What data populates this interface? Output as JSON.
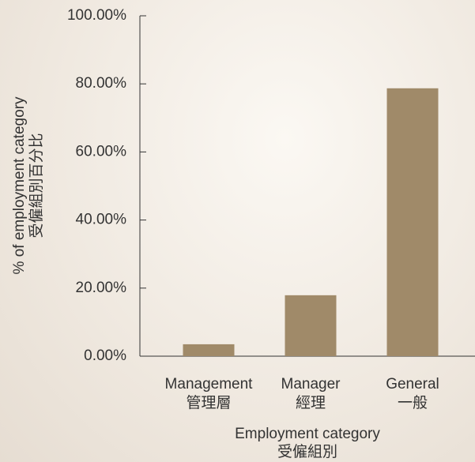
{
  "chart_data": {
    "type": "bar",
    "categories": [
      [
        "Management",
        "管理層"
      ],
      [
        "Manager",
        "經理"
      ],
      [
        "General",
        "一般"
      ]
    ],
    "values": [
      3.5,
      17.9,
      78.7
    ],
    "color": "#a08a69",
    "xlabel": [
      "Employment category",
      "受僱組別"
    ],
    "ylabel": [
      "% of employment category",
      "受僱組別百分比"
    ],
    "ylim": [
      0,
      100
    ],
    "yticks": [
      {
        "value": 0,
        "label": "0.00%"
      },
      {
        "value": 20,
        "label": "20.00%"
      },
      {
        "value": 40,
        "label": "40.00%"
      },
      {
        "value": 60,
        "label": "60.00%"
      },
      {
        "value": 80,
        "label": "80.00%"
      },
      {
        "value": 100,
        "label": "100.00%"
      }
    ],
    "grid": false
  }
}
